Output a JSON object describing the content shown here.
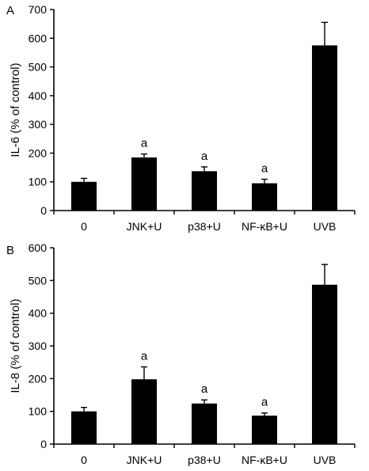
{
  "chart_data": [
    {
      "panel_label": "A",
      "type": "bar",
      "ylabel": "IL-6 (% of control)",
      "categories": [
        "0",
        "JNK+U",
        "p38+U",
        "NF-κB+U",
        "UVB"
      ],
      "values": [
        100,
        185,
        137,
        95,
        575
      ],
      "errors": [
        12,
        12,
        15,
        14,
        80
      ],
      "annotations": [
        "",
        "a",
        "a",
        "a",
        ""
      ],
      "ylim": [
        0,
        700
      ],
      "yticks": [
        0,
        100,
        200,
        300,
        400,
        500,
        600,
        700
      ],
      "bar_color": "#000000",
      "grid": false
    },
    {
      "panel_label": "B",
      "type": "bar",
      "ylabel": "IL-8 (% of control)",
      "categories": [
        "0",
        "JNK+U",
        "p38+U",
        "NF-κB+U",
        "UVB"
      ],
      "values": [
        100,
        198,
        124,
        87,
        487
      ],
      "errors": [
        12,
        38,
        11,
        8,
        62
      ],
      "annotations": [
        "",
        "a",
        "a",
        "a",
        ""
      ],
      "ylim": [
        0,
        600
      ],
      "yticks": [
        0,
        100,
        200,
        300,
        400,
        500,
        600
      ],
      "bar_color": "#000000",
      "grid": false
    }
  ]
}
